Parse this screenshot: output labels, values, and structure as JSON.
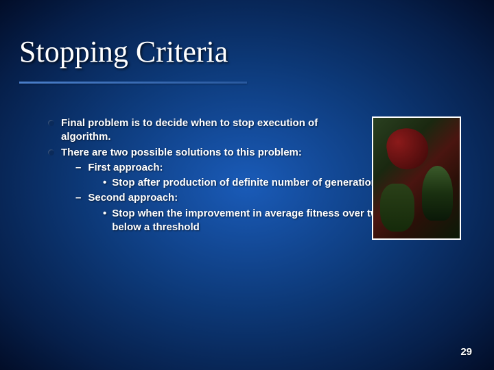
{
  "title": "Stopping Criteria",
  "bullets": {
    "b1": "Final problem is to decide when to stop execution of algorithm.",
    "b2": "There are two possible solutions to this problem:",
    "b2a": "First approach:",
    "b2a1": "Stop after production of definite number of generations",
    "b2b": "Second approach:",
    "b2b1": "Stop when the improvement in average fitness over two generations is below a threshold"
  },
  "page_number": "29",
  "colors": {
    "bg_center": "#1a5bb8",
    "bg_outer": "#020d28",
    "text": "#ffffff",
    "bullet_marker": "#0a2a5a"
  }
}
